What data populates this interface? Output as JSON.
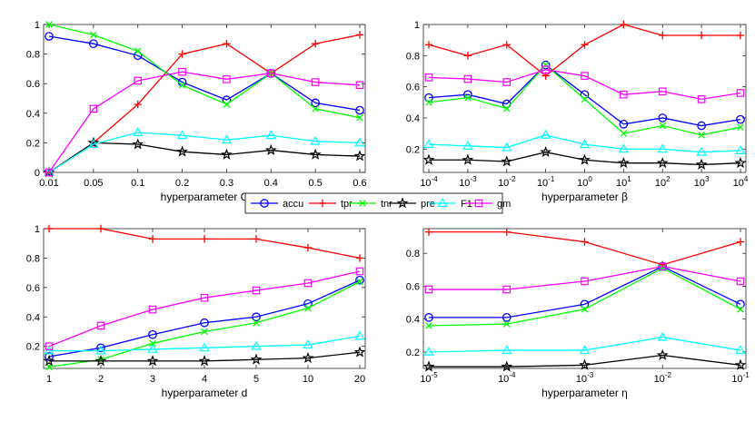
{
  "legend": {
    "placement": "center",
    "entries": [
      {
        "key": "accu",
        "label": "accu"
      },
      {
        "key": "tpr",
        "label": "tpr"
      },
      {
        "key": "tnr",
        "label": "tnr"
      },
      {
        "key": "pre",
        "label": "pre"
      },
      {
        "key": "F1",
        "label": "F1"
      },
      {
        "key": "gm",
        "label": "gm"
      }
    ]
  },
  "series_style": {
    "accu": {
      "color": "#0000ff",
      "marker": "circle"
    },
    "tpr": {
      "color": "#ff0000",
      "marker": "plus"
    },
    "tnr": {
      "color": "#00ff00",
      "marker": "x"
    },
    "pre": {
      "color": "#000000",
      "marker": "star"
    },
    "F1": {
      "color": "#00ffff",
      "marker": "triangle"
    },
    "gm": {
      "color": "#ff00ff",
      "marker": "square"
    }
  },
  "chart_data": [
    {
      "type": "line",
      "xlabel": "hyperparameter C",
      "ylim": [
        0,
        1
      ],
      "yticks": [
        "0",
        "0.2",
        "0.4",
        "0.6",
        "0.8",
        "1"
      ],
      "categories": [
        "0.01",
        "0.05",
        "0.1",
        "0.2",
        "0.3",
        "0.4",
        "0.5",
        "0.6"
      ],
      "series": [
        {
          "name": "accu",
          "values": [
            0.92,
            0.87,
            0.79,
            0.61,
            0.49,
            0.67,
            0.47,
            0.42
          ]
        },
        {
          "name": "tpr",
          "values": [
            0.0,
            0.2,
            0.46,
            0.8,
            0.87,
            0.67,
            0.87,
            0.93
          ]
        },
        {
          "name": "tnr",
          "values": [
            1.0,
            0.93,
            0.82,
            0.59,
            0.46,
            0.67,
            0.43,
            0.37
          ]
        },
        {
          "name": "pre",
          "values": [
            0.0,
            0.2,
            0.19,
            0.14,
            0.12,
            0.15,
            0.12,
            0.11
          ]
        },
        {
          "name": "F1",
          "values": [
            0.0,
            0.19,
            0.27,
            0.25,
            0.22,
            0.25,
            0.21,
            0.2
          ]
        },
        {
          "name": "gm",
          "values": [
            0.0,
            0.43,
            0.62,
            0.68,
            0.63,
            0.67,
            0.61,
            0.59
          ]
        }
      ]
    },
    {
      "type": "line",
      "xlabel": "hyperparameter β",
      "ylim": [
        0.05,
        1
      ],
      "yticks": [
        "0.2",
        "0.4",
        "0.6",
        "0.8",
        "1"
      ],
      "categories": [
        "10^-4",
        "10^-3",
        "10^-2",
        "10^-1",
        "10^0",
        "10^1",
        "10^2",
        "10^3",
        "10^4"
      ],
      "series": [
        {
          "name": "accu",
          "values": [
            0.53,
            0.55,
            0.49,
            0.74,
            0.55,
            0.36,
            0.4,
            0.35,
            0.39
          ]
        },
        {
          "name": "tpr",
          "values": [
            0.87,
            0.8,
            0.87,
            0.67,
            0.87,
            1.0,
            0.93,
            0.93,
            0.93
          ]
        },
        {
          "name": "tnr",
          "values": [
            0.5,
            0.53,
            0.46,
            0.74,
            0.52,
            0.3,
            0.35,
            0.29,
            0.34
          ]
        },
        {
          "name": "pre",
          "values": [
            0.13,
            0.13,
            0.12,
            0.18,
            0.13,
            0.11,
            0.11,
            0.1,
            0.11
          ]
        },
        {
          "name": "F1",
          "values": [
            0.23,
            0.22,
            0.21,
            0.29,
            0.23,
            0.2,
            0.2,
            0.18,
            0.19
          ]
        },
        {
          "name": "gm",
          "values": [
            0.66,
            0.65,
            0.63,
            0.71,
            0.67,
            0.55,
            0.57,
            0.52,
            0.56
          ]
        }
      ]
    },
    {
      "type": "line",
      "xlabel": "hyperparameter d",
      "ylim": [
        0.05,
        1
      ],
      "yticks": [
        "0.2",
        "0.4",
        "0.6",
        "0.8",
        "1"
      ],
      "categories": [
        "1",
        "2",
        "3",
        "4",
        "5",
        "10",
        "20"
      ],
      "series": [
        {
          "name": "accu",
          "values": [
            0.13,
            0.19,
            0.28,
            0.36,
            0.4,
            0.49,
            0.65
          ]
        },
        {
          "name": "tpr",
          "values": [
            1.0,
            1.0,
            0.93,
            0.93,
            0.93,
            0.87,
            0.8
          ]
        },
        {
          "name": "tnr",
          "values": [
            0.06,
            0.11,
            0.22,
            0.3,
            0.36,
            0.46,
            0.64
          ]
        },
        {
          "name": "pre",
          "values": [
            0.1,
            0.1,
            0.1,
            0.1,
            0.11,
            0.12,
            0.16
          ]
        },
        {
          "name": "F1",
          "values": [
            0.17,
            0.17,
            0.18,
            0.19,
            0.2,
            0.21,
            0.27
          ]
        },
        {
          "name": "gm",
          "values": [
            0.2,
            0.34,
            0.45,
            0.53,
            0.58,
            0.63,
            0.71
          ]
        }
      ]
    },
    {
      "type": "line",
      "xlabel": "hyperparameter η",
      "ylim": [
        0.1,
        0.95
      ],
      "yticks": [
        "0.2",
        "0.4",
        "0.6",
        "0.8"
      ],
      "categories": [
        "10^-5",
        "10^-4",
        "10^-3",
        "10^-2",
        "10^-1"
      ],
      "series": [
        {
          "name": "accu",
          "values": [
            0.41,
            0.41,
            0.49,
            0.72,
            0.49
          ]
        },
        {
          "name": "tpr",
          "values": [
            0.93,
            0.93,
            0.87,
            0.73,
            0.87
          ]
        },
        {
          "name": "tnr",
          "values": [
            0.36,
            0.37,
            0.46,
            0.71,
            0.46
          ]
        },
        {
          "name": "pre",
          "values": [
            0.11,
            0.11,
            0.12,
            0.18,
            0.12
          ]
        },
        {
          "name": "F1",
          "values": [
            0.2,
            0.21,
            0.21,
            0.29,
            0.21
          ]
        },
        {
          "name": "gm",
          "values": [
            0.58,
            0.58,
            0.63,
            0.72,
            0.63
          ]
        }
      ]
    }
  ]
}
